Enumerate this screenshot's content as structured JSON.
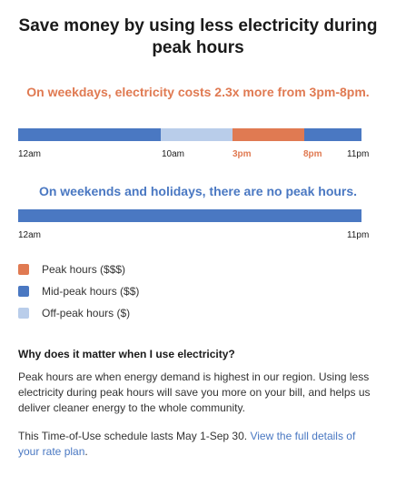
{
  "title": "Save money by using less electricity during peak hours",
  "weekday": {
    "message": "On weekdays, electricity costs 2.3x more from 3pm-8pm.",
    "tick_labels": {
      "start": "12am",
      "offpeak_start": "10am",
      "peak_start": "3pm",
      "peak_end": "8pm",
      "end": "11pm"
    }
  },
  "weekend": {
    "message": "On weekends and holidays, there are no peak hours.",
    "tick_labels": {
      "start": "12am",
      "end": "11pm"
    }
  },
  "legend": [
    {
      "label": "Peak hours ($$$)",
      "color": "#e07a52"
    },
    {
      "label": "Mid-peak hours ($$)",
      "color": "#4a78c2"
    },
    {
      "label": "Off-peak hours ($)",
      "color": "#b9cdea"
    }
  ],
  "info": {
    "heading": "Why does it matter when I use electricity?",
    "body": "Peak hours are when energy demand is highest in our region. Using less electricity during peak hours will save you more on your bill, and helps us deliver cleaner energy to the whole community.",
    "schedule_text": "This Time-of-Use schedule lasts May 1-Sep 30.",
    "link_text": "View the full details of your rate plan",
    "link_suffix": "."
  },
  "colors": {
    "peak": "#e07a52",
    "mid_peak": "#4a78c2",
    "off_peak": "#b9cdea"
  }
}
